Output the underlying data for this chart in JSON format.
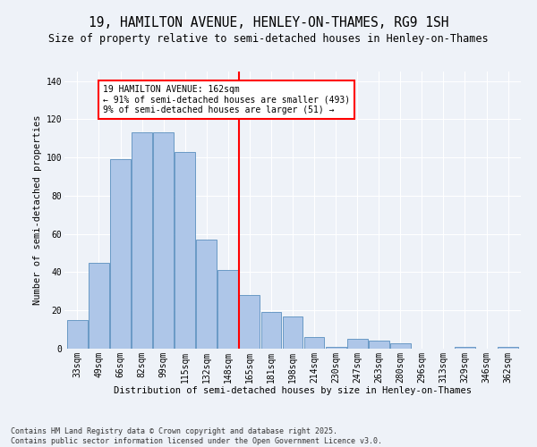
{
  "title": "19, HAMILTON AVENUE, HENLEY-ON-THAMES, RG9 1SH",
  "subtitle": "Size of property relative to semi-detached houses in Henley-on-Thames",
  "xlabel": "Distribution of semi-detached houses by size in Henley-on-Thames",
  "ylabel": "Number of semi-detached properties",
  "categories": [
    "33sqm",
    "49sqm",
    "66sqm",
    "82sqm",
    "99sqm",
    "115sqm",
    "132sqm",
    "148sqm",
    "165sqm",
    "181sqm",
    "198sqm",
    "214sqm",
    "230sqm",
    "247sqm",
    "263sqm",
    "280sqm",
    "296sqm",
    "313sqm",
    "329sqm",
    "346sqm",
    "362sqm"
  ],
  "bar_heights": [
    15,
    45,
    99,
    113,
    113,
    103,
    57,
    41,
    28,
    19,
    17,
    6,
    1,
    5,
    4,
    3,
    0,
    0,
    1,
    0,
    1
  ],
  "bar_color": "#aec6e8",
  "bar_edge_color": "#5a8fbf",
  "vline_color": "red",
  "annotation_text": "19 HAMILTON AVENUE: 162sqm\n← 91% of semi-detached houses are smaller (493)\n9% of semi-detached houses are larger (51) →",
  "annotation_box_color": "white",
  "annotation_box_edge": "red",
  "footer": "Contains HM Land Registry data © Crown copyright and database right 2025.\nContains public sector information licensed under the Open Government Licence v3.0.",
  "ylim": [
    0,
    145
  ],
  "yticks": [
    0,
    20,
    40,
    60,
    80,
    100,
    120,
    140
  ],
  "bg_color": "#eef2f8",
  "title_fontsize": 10.5,
  "subtitle_fontsize": 8.5,
  "axis_label_fontsize": 7.5,
  "tick_fontsize": 7,
  "footer_fontsize": 6
}
